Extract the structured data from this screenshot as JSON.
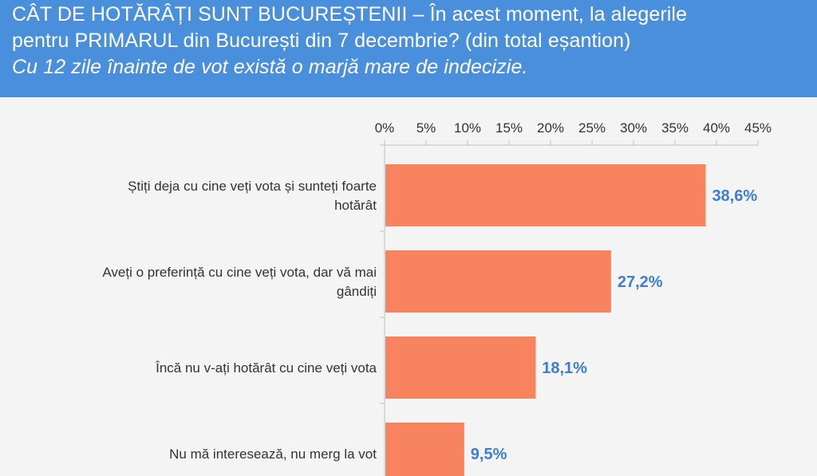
{
  "header": {
    "line1": "CÂT DE HOTĂRÂȚI SUNT BUCUREȘTENII – În acest moment, la alegerile",
    "line2": "pentru PRIMARUL din București din 7 decembrie? (din total eșantion)",
    "line3": "Cu 12 zile înainte de vot există o marjă mare de indecizie."
  },
  "colors": {
    "header_bg": "#4a8fdc",
    "bar": "#f7845e",
    "value_label": "#3b7fd4",
    "axis": "#bfbfbf"
  },
  "chart_data": {
    "type": "bar",
    "orientation": "horizontal",
    "x_axis_position": "top",
    "xlim": [
      0,
      45
    ],
    "ticks": [
      "0%",
      "5%",
      "10%",
      "15%",
      "20%",
      "25%",
      "30%",
      "35%",
      "40%",
      "45%"
    ],
    "tick_values": [
      0,
      5,
      10,
      15,
      20,
      25,
      30,
      35,
      40,
      45
    ],
    "grid": false,
    "categories": [
      [
        "Știți deja cu cine veți vota și sunteți foarte",
        "hotărât"
      ],
      [
        "Aveți o preferință cu cine veți vota, dar vă mai",
        "gândiți"
      ],
      [
        "Încă nu v-ați hotărât cu cine veți vota"
      ],
      [
        "Nu mă interesează, nu merg la vot"
      ]
    ],
    "values": [
      38.6,
      27.2,
      18.1,
      9.5
    ],
    "value_labels": [
      "38,6%",
      "27,2%",
      "18,1%",
      "9,5%"
    ]
  }
}
